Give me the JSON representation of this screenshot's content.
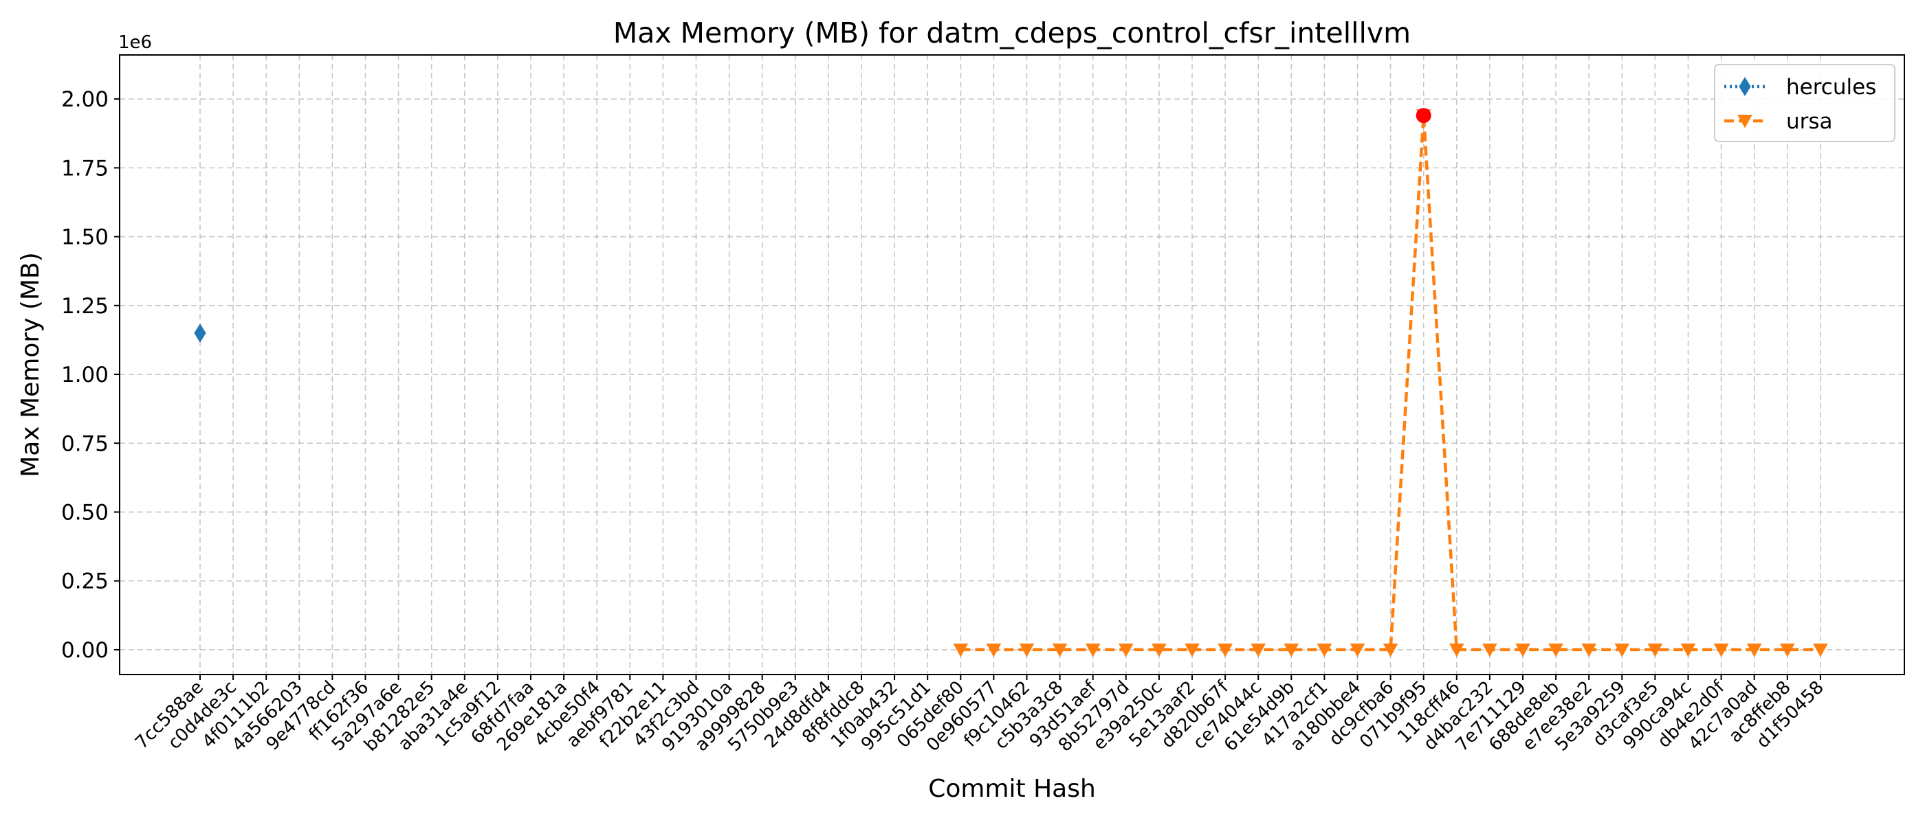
{
  "chart_data": {
    "type": "line",
    "title": "Max Memory (MB) for datm_cdeps_control_cfsr_intelllvm",
    "xlabel": "Commit Hash",
    "ylabel": "Max Memory (MB)",
    "y_offset_text": "1e6",
    "ylim": [
      -90000,
      2160000
    ],
    "yticks": [
      0,
      250000,
      500000,
      750000,
      1000000,
      1250000,
      1500000,
      1750000,
      2000000
    ],
    "ytick_labels": [
      "0.00",
      "0.25",
      "0.50",
      "0.75",
      "1.00",
      "1.25",
      "1.50",
      "1.75",
      "2.00"
    ],
    "grid": true,
    "legend_position": "top-right",
    "categories": [
      "7cc588ae",
      "c0d4de3c",
      "4f0111b2",
      "4a566203",
      "9e4778cd",
      "ff162f36",
      "5a297a6e",
      "b81282e5",
      "aba31a4e",
      "1c5a9f12",
      "68fd7faa",
      "269e181a",
      "4cbe50f4",
      "aebf9781",
      "f22b2e11",
      "43f2c3bd",
      "9193010a",
      "a9999828",
      "5750b9e3",
      "24d8dfd4",
      "8f8fddc8",
      "1f0ab432",
      "995c51d1",
      "065def80",
      "0e960577",
      "f9c10462",
      "c5b3a3c8",
      "93d51aef",
      "8b52797d",
      "e39a250c",
      "5e13aaf2",
      "d820b67f",
      "ce74044c",
      "61e54d9b",
      "417a2cf1",
      "a180bbe4",
      "dc9cfba6",
      "071b9f95",
      "118cff46",
      "d4bac232",
      "7e711129",
      "688de8eb",
      "e7ee38e2",
      "5e3a9259",
      "d3caf3e5",
      "990ca94c",
      "db4e2d0f",
      "42c7a0ad",
      "ac8ffeb8",
      "d1f50458"
    ],
    "series": [
      {
        "name": "hercules",
        "color": "#1f77b4",
        "marker": "diamond",
        "linestyle": "dotted",
        "values": [
          1150000,
          null,
          null,
          null,
          null,
          null,
          null,
          null,
          null,
          null,
          null,
          null,
          null,
          null,
          null,
          null,
          null,
          null,
          null,
          null,
          null,
          null,
          null,
          null,
          null,
          null,
          null,
          null,
          null,
          null,
          null,
          null,
          null,
          null,
          null,
          null,
          null,
          null,
          null,
          null,
          null,
          null,
          null,
          null,
          null,
          null,
          null,
          null,
          null,
          null
        ]
      },
      {
        "name": "ursa",
        "color": "#ff7f0e",
        "marker": "triangle-down",
        "linestyle": "dashed",
        "values": [
          null,
          null,
          null,
          null,
          null,
          null,
          null,
          null,
          null,
          null,
          null,
          null,
          null,
          null,
          null,
          null,
          null,
          null,
          null,
          null,
          null,
          null,
          null,
          0,
          0,
          0,
          0,
          0,
          0,
          0,
          0,
          0,
          0,
          0,
          0,
          0,
          0,
          1940000,
          0,
          0,
          0,
          0,
          0,
          0,
          0,
          0,
          0,
          0,
          0,
          0
        ]
      }
    ],
    "highlight": {
      "category": "071b9f95",
      "value": 1940000,
      "color": "#ff0000"
    }
  }
}
